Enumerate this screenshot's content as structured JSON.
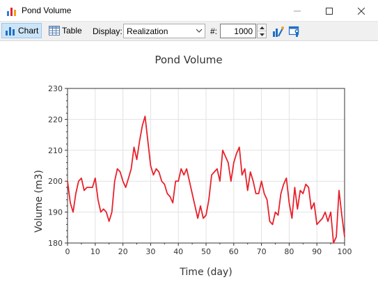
{
  "window": {
    "title": "Pond Volume"
  },
  "toolbar": {
    "chart_label": "Chart",
    "table_label": "Table",
    "display_label": "Display:",
    "display_value": "Realization",
    "number_label": "#:",
    "number_value": "1000"
  },
  "colors": {
    "series": "#e8212b",
    "grid": "#e2e2e2",
    "active_tab": "#cce4f7"
  },
  "chart_data": {
    "type": "line",
    "title": "Pond Volume",
    "xlabel": "Time (day)",
    "ylabel": "Volume (m3)",
    "xlim": [
      0,
      100
    ],
    "ylim": [
      180,
      230
    ],
    "xticks": [
      "0",
      "10",
      "20",
      "30",
      "40",
      "50",
      "60",
      "70",
      "80",
      "90",
      "100"
    ],
    "yticks": [
      "180",
      "190",
      "200",
      "210",
      "220",
      "230"
    ],
    "grid": true,
    "series": [
      {
        "color": "#e8212b",
        "x": [
          0,
          1,
          2,
          3,
          4,
          5,
          6,
          7,
          8,
          9,
          10,
          11,
          12,
          13,
          14,
          15,
          16,
          17,
          18,
          19,
          20,
          21,
          22,
          23,
          24,
          25,
          26,
          27,
          28,
          29,
          30,
          31,
          32,
          33,
          34,
          35,
          36,
          37,
          38,
          39,
          40,
          41,
          42,
          43,
          44,
          45,
          46,
          47,
          48,
          49,
          50,
          51,
          52,
          53,
          54,
          55,
          56,
          57,
          58,
          59,
          60,
          61,
          62,
          63,
          64,
          65,
          66,
          67,
          68,
          69,
          70,
          71,
          72,
          73,
          74,
          75,
          76,
          77,
          78,
          79,
          80,
          81,
          82,
          83,
          84,
          85,
          86,
          87,
          88,
          89,
          90,
          91,
          92,
          93,
          94,
          95,
          96,
          97,
          98,
          99,
          100
        ],
        "y": [
          200,
          193,
          190,
          196,
          200,
          201,
          197,
          198,
          198,
          198,
          201,
          194,
          190,
          191,
          190,
          187,
          190,
          200,
          204,
          203,
          200,
          198,
          201,
          204,
          211,
          207,
          213,
          218,
          221,
          213,
          205,
          202,
          204,
          203,
          200,
          199,
          196,
          195,
          193,
          200,
          200,
          204,
          202,
          204,
          200,
          196,
          192,
          188,
          192,
          188,
          189,
          194,
          202,
          203,
          204,
          200,
          210,
          208,
          206,
          200,
          206,
          209,
          211,
          202,
          204,
          197,
          203,
          200,
          196,
          196,
          200,
          196,
          194,
          187,
          186,
          190,
          189,
          196,
          199,
          201,
          193,
          188,
          198,
          191,
          197,
          196,
          199,
          198,
          191,
          193,
          186,
          187,
          188,
          190,
          187,
          190,
          180,
          182,
          197,
          189,
          182
        ]
      }
    ]
  }
}
